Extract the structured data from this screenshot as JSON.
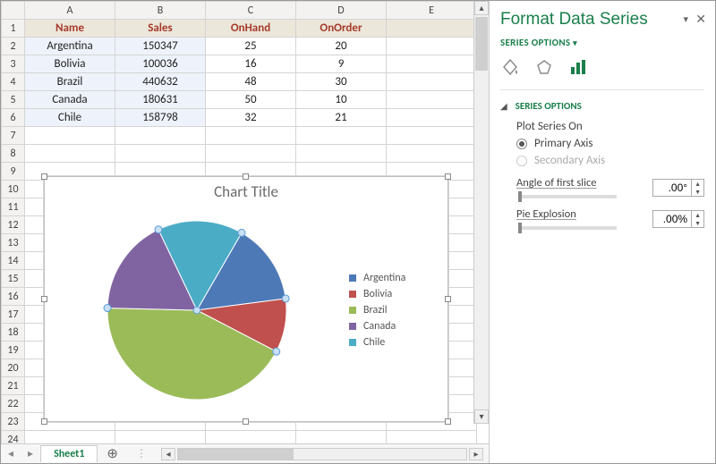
{
  "table": {
    "columns": [
      "Name",
      "Sales",
      "OnHand",
      "OnOrder"
    ],
    "rows": [
      [
        "Argentina",
        "150347",
        "25",
        "20"
      ],
      [
        "Bolivia",
        "100036",
        "16",
        "9"
      ],
      [
        "Brazil",
        "440632",
        "48",
        "30"
      ],
      [
        "Canada",
        "180631",
        "50",
        "10"
      ],
      [
        "Chile",
        "158798",
        "32",
        "21"
      ]
    ],
    "header_bg": "#ece7db",
    "header_color": "#a63a2a",
    "selection_bg": "#eef3fb"
  },
  "col_letters": [
    "A",
    "B",
    "C",
    "D",
    "E"
  ],
  "visible_row_numbers": [
    1,
    2,
    3,
    4,
    5,
    6,
    7,
    8,
    9,
    10,
    11,
    12,
    13,
    14,
    15,
    16,
    17,
    18,
    19,
    20,
    21,
    22,
    23,
    24
  ],
  "chart": {
    "type": "pie",
    "title": "Chart Title",
    "title_color": "#6b6b6b",
    "title_fontsize": 17,
    "series": [
      {
        "label": "Argentina",
        "value": 150347,
        "color": "#4e79b7"
      },
      {
        "label": "Bolivia",
        "value": 100036,
        "color": "#c0504d"
      },
      {
        "label": "Brazil",
        "value": 440632,
        "color": "#9bbb59"
      },
      {
        "label": "Canada",
        "value": 180631,
        "color": "#8064a2"
      },
      {
        "label": "Chile",
        "value": 158798,
        "color": "#4bacc6"
      }
    ],
    "background": "#ffffff",
    "start_angle_deg": -60,
    "radius": 100,
    "show_selection_handles": true
  },
  "sheet_tab": {
    "name": "Sheet1"
  },
  "pane": {
    "title": "Format Data Series",
    "subtitle": "SERIES OPTIONS",
    "section": "SERIES OPTIONS",
    "plot_label": "Plot Series On",
    "radio_primary": "Primary Axis",
    "radio_secondary": "Secondary Axis",
    "angle_label": "Angle of first slice",
    "angle_value": ".00°",
    "explosion_label": "Pie Explosion",
    "explosion_value": ".00%",
    "accent": "#1a7f4b"
  }
}
